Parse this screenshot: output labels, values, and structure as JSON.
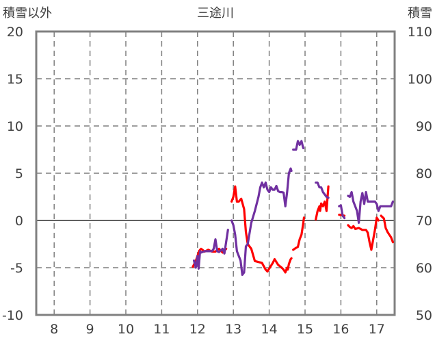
{
  "chart_data": {
    "type": "line",
    "title": "三途川",
    "left_axis_label": "積雪以外",
    "right_axis_label": "積雪",
    "ylim_left": [
      -10,
      20
    ],
    "ylim_right": [
      50,
      110
    ],
    "xlim": [
      7.5,
      17.5
    ],
    "x_ticks": [
      "8",
      "9",
      "10",
      "11",
      "12",
      "13",
      "14",
      "15",
      "16",
      "17"
    ],
    "y_ticks_left": [
      "-10",
      "-5",
      "0",
      "5",
      "10",
      "15",
      "20"
    ],
    "y_ticks_right": [
      "50",
      "60",
      "70",
      "80",
      "90",
      "100",
      "110"
    ],
    "grid": true,
    "series": [
      {
        "axis": "left",
        "color": "#ff0000",
        "segments": [
          [
            [
              11.87,
              -4.9
            ],
            [
              11.95,
              -4.3
            ],
            [
              12.05,
              -3.2
            ],
            [
              12.1,
              -3.0
            ],
            [
              12.2,
              -3.3
            ],
            [
              12.3,
              -3.1
            ],
            [
              12.4,
              -3.3
            ],
            [
              12.5,
              -3.3
            ],
            [
              12.6,
              -3.0
            ],
            [
              12.7,
              -3.4
            ],
            [
              12.8,
              -3.0
            ]
          ],
          [
            [
              12.95,
              2.0
            ],
            [
              13.0,
              2.5
            ],
            [
              13.05,
              3.6
            ],
            [
              13.1,
              2.0
            ],
            [
              13.15,
              2.0
            ],
            [
              13.22,
              2.3
            ],
            [
              13.3,
              1.2
            ],
            [
              13.35,
              -1.2
            ],
            [
              13.4,
              -2.5
            ],
            [
              13.5,
              -3.0
            ],
            [
              13.6,
              -4.3
            ],
            [
              13.7,
              -4.4
            ],
            [
              13.8,
              -4.5
            ],
            [
              13.9,
              -5.2
            ],
            [
              13.95,
              -5.4
            ],
            [
              14.05,
              -4.8
            ],
            [
              14.1,
              -4.5
            ],
            [
              14.15,
              -4.1
            ],
            [
              14.25,
              -4.7
            ],
            [
              14.35,
              -5.0
            ],
            [
              14.4,
              -5.2
            ],
            [
              14.45,
              -5.5
            ],
            [
              14.5,
              -5.0
            ],
            [
              14.52,
              -5.2
            ],
            [
              14.55,
              -4.6
            ],
            [
              14.6,
              -4.1
            ],
            [
              14.62,
              -4.0
            ]
          ],
          [
            [
              14.67,
              -3.1
            ],
            [
              14.75,
              -2.9
            ],
            [
              14.8,
              -2.8
            ],
            [
              14.85,
              -2.0
            ],
            [
              14.9,
              -1.5
            ],
            [
              14.95,
              -0.3
            ],
            [
              14.97,
              0.3
            ]
          ],
          [
            [
              15.3,
              0.1
            ],
            [
              15.35,
              1.0
            ],
            [
              15.4,
              1.5
            ],
            [
              15.42,
              1.0
            ],
            [
              15.45,
              1.8
            ],
            [
              15.5,
              1.5
            ],
            [
              15.55,
              2.0
            ],
            [
              15.6,
              1.0
            ],
            [
              15.65,
              3.6
            ]
          ],
          [
            [
              15.95,
              0.6
            ],
            [
              16.1,
              0.5
            ]
          ],
          [
            [
              16.2,
              -0.5
            ],
            [
              16.25,
              -0.7
            ],
            [
              16.3,
              -0.8
            ],
            [
              16.35,
              -0.6
            ],
            [
              16.4,
              -0.9
            ],
            [
              16.5,
              -0.8
            ],
            [
              16.6,
              -1.0
            ],
            [
              16.7,
              -1.0
            ],
            [
              16.75,
              -1.3
            ],
            [
              16.8,
              -2.3
            ],
            [
              16.85,
              -3.1
            ],
            [
              16.95,
              -1.0
            ],
            [
              17.0,
              0.3
            ],
            [
              17.05,
              0.0
            ]
          ],
          [
            [
              17.12,
              0.5
            ],
            [
              17.2,
              0.2
            ],
            [
              17.25,
              -0.8
            ],
            [
              17.3,
              -1.2
            ],
            [
              17.35,
              -1.5
            ],
            [
              17.4,
              -1.8
            ],
            [
              17.45,
              -2.3
            ]
          ]
        ]
      },
      {
        "axis": "right",
        "color": "#7030a0",
        "segments": [
          [
            [
              11.9,
              61.5
            ],
            [
              11.95,
              60.0
            ],
            [
              12.0,
              62.5
            ],
            [
              12.03,
              59.8
            ],
            [
              12.07,
              63.5
            ],
            [
              12.1,
              63.2
            ],
            [
              12.2,
              63.5
            ],
            [
              12.3,
              63.5
            ],
            [
              12.4,
              63.5
            ],
            [
              12.45,
              64.0
            ],
            [
              12.5,
              66.0
            ],
            [
              12.55,
              63.5
            ],
            [
              12.6,
              63.3
            ],
            [
              12.7,
              64.0
            ],
            [
              12.75,
              63.0
            ],
            [
              12.85,
              68.0
            ]
          ],
          [
            [
              12.95,
              70.0
            ],
            [
              13.0,
              69.0
            ],
            [
              13.05,
              67.0
            ],
            [
              13.1,
              63.5
            ],
            [
              13.2,
              61.5
            ],
            [
              13.25,
              58.5
            ],
            [
              13.3,
              59.0
            ],
            [
              13.35,
              64.5
            ],
            [
              13.4,
              65.0
            ],
            [
              13.5,
              69.5
            ],
            [
              13.6,
              72.0
            ],
            [
              13.7,
              75.0
            ],
            [
              13.75,
              77.0
            ],
            [
              13.8,
              78.0
            ],
            [
              13.85,
              77.0
            ],
            [
              13.9,
              78.0
            ],
            [
              13.95,
              76.5
            ],
            [
              14.0,
              76.0
            ],
            [
              14.05,
              77.0
            ],
            [
              14.1,
              76.5
            ],
            [
              14.15,
              76.5
            ],
            [
              14.2,
              77.3
            ],
            [
              14.25,
              76.2
            ],
            [
              14.3,
              76.0
            ],
            [
              14.35,
              76.0
            ],
            [
              14.4,
              75.9
            ],
            [
              14.45,
              73.0
            ],
            [
              14.5,
              76.0
            ],
            [
              14.55,
              80.0
            ],
            [
              14.6,
              81.0
            ],
            [
              14.62,
              80.5
            ]
          ],
          [
            [
              14.67,
              85.0
            ],
            [
              14.75,
              85.0
            ],
            [
              14.8,
              86.8
            ],
            [
              14.85,
              86.0
            ],
            [
              14.9,
              86.8
            ],
            [
              14.95,
              85.3
            ]
          ],
          [
            [
              15.3,
              78.0
            ],
            [
              15.35,
              78.0
            ],
            [
              15.4,
              77.0
            ],
            [
              15.45,
              77.0
            ],
            [
              15.5,
              76.0
            ],
            [
              15.6,
              75.0
            ],
            [
              15.65,
              74.8
            ]
          ],
          [
            [
              15.95,
              73.0
            ],
            [
              16.0,
              73.2
            ],
            [
              16.05,
              71.0
            ],
            [
              16.1,
              70.5
            ]
          ],
          [
            [
              16.2,
              75.2
            ],
            [
              16.25,
              75.0
            ],
            [
              16.3,
              76.0
            ],
            [
              16.35,
              74.0
            ],
            [
              16.45,
              72.0
            ],
            [
              16.5,
              69.5
            ],
            [
              16.55,
              74.0
            ],
            [
              16.6,
              75.8
            ],
            [
              16.65,
              73.5
            ],
            [
              16.7,
              76.0
            ],
            [
              16.75,
              74.0
            ],
            [
              16.8,
              74.0
            ],
            [
              16.85,
              74.0
            ],
            [
              16.95,
              74.0
            ],
            [
              17.0,
              73.5
            ],
            [
              17.05,
              72.0
            ],
            [
              17.1,
              73.0
            ],
            [
              17.2,
              73.0
            ],
            [
              17.3,
              73.0
            ],
            [
              17.4,
              73.0
            ],
            [
              17.45,
              74.0
            ]
          ]
        ]
      }
    ]
  }
}
